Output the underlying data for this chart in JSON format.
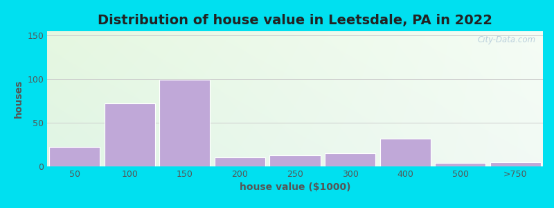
{
  "title": "Distribution of house value in Leetsdale, PA in 2022",
  "xlabel": "house value ($1000)",
  "ylabel": "houses",
  "bar_labels": [
    "50",
    "100",
    "150",
    "200",
    "250",
    "300",
    "400",
    "500",
    ">750"
  ],
  "bar_values": [
    22,
    72,
    99,
    10,
    13,
    15,
    32,
    4,
    5
  ],
  "bar_color": "#c0a8d8",
  "bar_edgecolor": "#ffffff",
  "ylim": [
    0,
    155
  ],
  "yticks": [
    0,
    50,
    100,
    150
  ],
  "background_outer": "#00e0f0",
  "grid_color": "#cccccc",
  "title_fontsize": 14,
  "axis_fontsize": 10,
  "tick_fontsize": 9,
  "watermark": "City-Data.com",
  "grad_tl": [
    0.9,
    0.97,
    0.88
  ],
  "grad_tr": [
    0.96,
    0.99,
    0.96
  ],
  "grad_bl": [
    0.88,
    0.96,
    0.9
  ],
  "grad_br": [
    0.95,
    0.98,
    0.96
  ]
}
